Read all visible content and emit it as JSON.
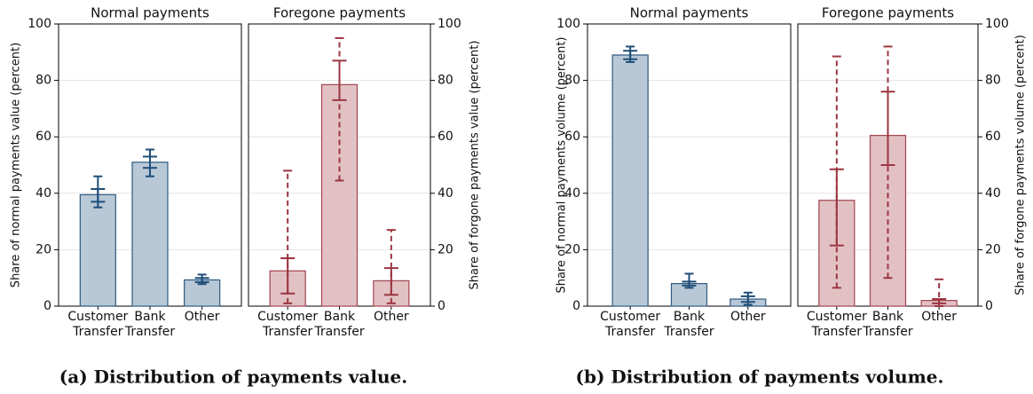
{
  "chart_data": [
    {
      "type": "bar",
      "title": "Normal payments",
      "ylabel": "Share of normal payments value (percent)",
      "yaxis_side": "left",
      "categories": [
        "Customer Transfer",
        "Bank Transfer",
        "Other"
      ],
      "values": [
        39.5,
        51,
        9.3
      ],
      "ci_inner": [
        [
          37,
          41.5
        ],
        [
          49,
          53
        ],
        [
          8.5,
          10
        ]
      ],
      "ci_outer": [
        [
          35,
          46
        ],
        [
          46,
          55.5
        ],
        [
          7.8,
          11.2
        ]
      ],
      "ylim": [
        0,
        100
      ],
      "yticks": [
        0,
        20,
        40,
        60,
        80,
        100
      ],
      "grid": true,
      "color": "#b8c8d6",
      "edge_color": "#2e5a80",
      "ci_color": "#1f4e79",
      "outer_dashed": false
    },
    {
      "type": "bar",
      "title": "Foregone payments",
      "ylabel": "Share of forgone payments value (percent)",
      "yaxis_side": "right",
      "categories": [
        "Customer Transfer",
        "Bank Transfer",
        "Other"
      ],
      "values": [
        12.5,
        78.5,
        9
      ],
      "ci_inner": [
        [
          4.5,
          17
        ],
        [
          73,
          87
        ],
        [
          4,
          13.5
        ]
      ],
      "ci_outer": [
        [
          1,
          48
        ],
        [
          44.5,
          95
        ],
        [
          1,
          27
        ]
      ],
      "ylim": [
        0,
        100
      ],
      "yticks": [
        0,
        20,
        40,
        60,
        80,
        100
      ],
      "grid": true,
      "color": "#e2c1c4",
      "edge_color": "#a3434d",
      "ci_color": "#9b3540",
      "outer_dashed": true
    },
    {
      "type": "bar",
      "title": "Normal payments",
      "ylabel": "Share of normal payments volume (percent)",
      "yaxis_side": "left",
      "categories": [
        "Customer Transfer",
        "Bank Transfer",
        "Other"
      ],
      "values": [
        89,
        8,
        2.5
      ],
      "ci_inner": [
        [
          87.5,
          90.5
        ],
        [
          7.3,
          8.7
        ],
        [
          1.5,
          3.5
        ]
      ],
      "ci_outer": [
        [
          86.5,
          92
        ],
        [
          6.5,
          11.5
        ],
        [
          0.5,
          4.8
        ]
      ],
      "ylim": [
        0,
        100
      ],
      "yticks": [
        0,
        20,
        40,
        60,
        80,
        100
      ],
      "grid": true,
      "color": "#b8c8d6",
      "edge_color": "#2e5a80",
      "ci_color": "#1f4e79",
      "outer_dashed": false
    },
    {
      "type": "bar",
      "title": "Foregone payments",
      "ylabel": "Share of forgone payments volume (percent)",
      "yaxis_side": "right",
      "categories": [
        "Customer Transfer",
        "Bank Transfer",
        "Other"
      ],
      "values": [
        37.5,
        60.5,
        2
      ],
      "ci_inner": [
        [
          21.5,
          48.5
        ],
        [
          50,
          76
        ],
        [
          1,
          2.5
        ]
      ],
      "ci_outer": [
        [
          6.5,
          88.5
        ],
        [
          10,
          92
        ],
        [
          0,
          9.5
        ]
      ],
      "ylim": [
        0,
        100
      ],
      "yticks": [
        0,
        20,
        40,
        60,
        80,
        100
      ],
      "grid": true,
      "color": "#e2c1c4",
      "edge_color": "#a3434d",
      "ci_color": "#9b3540",
      "outer_dashed": true
    }
  ],
  "captions": [
    "(a) Distribution of payments value.",
    "(b) Distribution of payments volume."
  ]
}
